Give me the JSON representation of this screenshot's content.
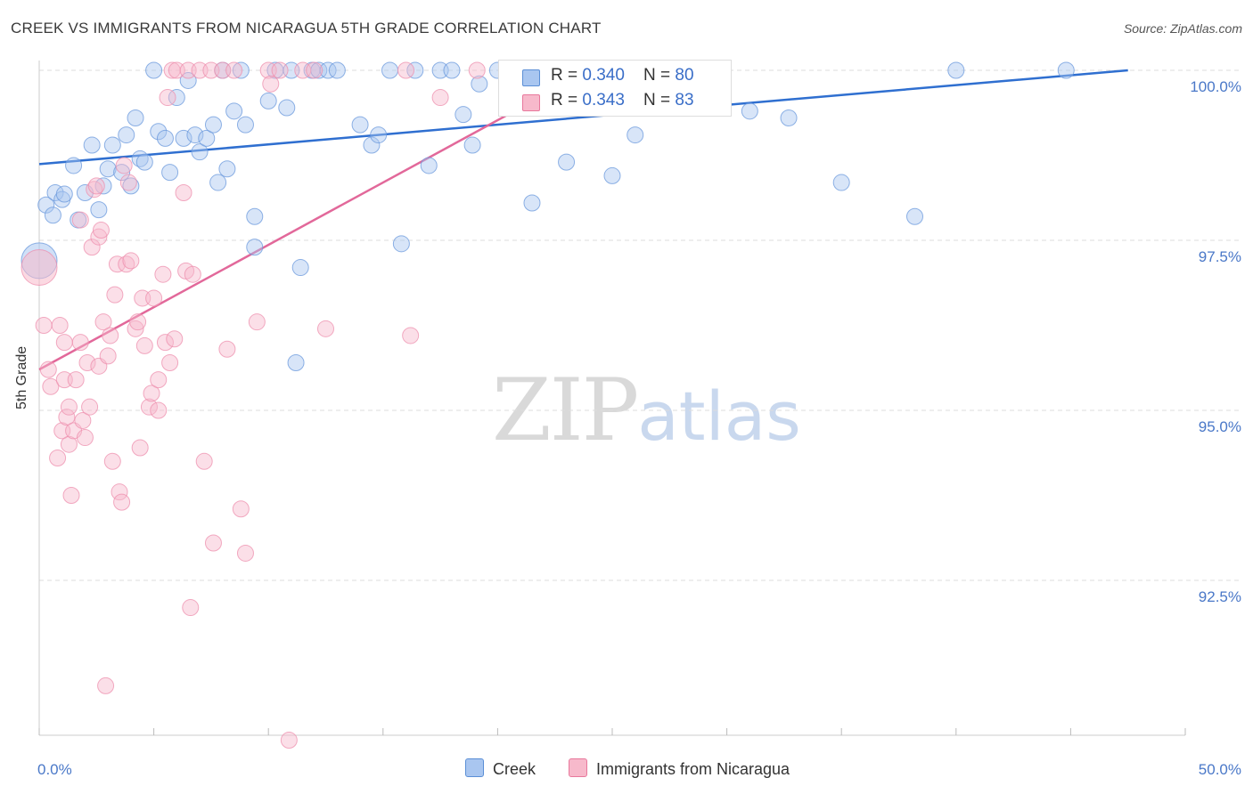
{
  "header": {
    "title": "CREEK VS IMMIGRANTS FROM NICARAGUA 5TH GRADE CORRELATION CHART",
    "source": "Source: ZipAtlas.com"
  },
  "legend": {
    "creek": {
      "r_label": "R = ",
      "r_value": "0.340",
      "n_label": "N = ",
      "n_value": "80",
      "name": "Creek",
      "color": "#a9c6f0",
      "stroke": "#5b8fd6"
    },
    "nicaragua": {
      "r_label": "R = ",
      "r_value": "0.343",
      "n_label": "N = ",
      "n_value": "83",
      "name": "Immigrants from Nicaragua",
      "color": "#f7b9cb",
      "stroke": "#e8789c"
    }
  },
  "watermark": {
    "zip": "ZIP",
    "atlas": "atlas"
  },
  "chart_data": {
    "type": "scatter",
    "title": "CREEK VS IMMIGRANTS FROM NICARAGUA 5TH GRADE CORRELATION CHART",
    "xlabel": "",
    "ylabel": "5th Grade",
    "xlim": [
      0,
      50
    ],
    "ylim": [
      90.2,
      100.4
    ],
    "x_ticks": [
      {
        "value": 0,
        "label": "0.0%"
      },
      {
        "value": 50,
        "label": "50.0%"
      }
    ],
    "y_ticks": [
      {
        "value": 100.0,
        "label": "100.0%"
      },
      {
        "value": 97.5,
        "label": "97.5%"
      },
      {
        "value": 95.0,
        "label": "95.0%"
      },
      {
        "value": 92.5,
        "label": "92.5%"
      }
    ],
    "grid": true,
    "legend_position": "top-center",
    "series": [
      {
        "name": "Creek",
        "color": "#a9c6f0",
        "trend": {
          "x": [
            0,
            47.5
          ],
          "y": [
            98.62,
            100.0
          ]
        },
        "points": [
          [
            0.0,
            97.2
          ],
          [
            0.3,
            98.02
          ],
          [
            0.6,
            97.87
          ],
          [
            0.7,
            98.2
          ],
          [
            1.0,
            98.1
          ],
          [
            1.1,
            98.18
          ],
          [
            1.5,
            98.6
          ],
          [
            1.7,
            97.8
          ],
          [
            2.0,
            98.2
          ],
          [
            2.3,
            98.9
          ],
          [
            2.6,
            97.95
          ],
          [
            2.8,
            98.3
          ],
          [
            3.0,
            98.55
          ],
          [
            3.2,
            98.9
          ],
          [
            3.6,
            98.5
          ],
          [
            3.8,
            99.05
          ],
          [
            4.0,
            98.3
          ],
          [
            4.2,
            99.3
          ],
          [
            4.4,
            98.7
          ],
          [
            4.6,
            98.65
          ],
          [
            5.0,
            100.0
          ],
          [
            5.2,
            99.1
          ],
          [
            5.5,
            99.0
          ],
          [
            5.7,
            98.5
          ],
          [
            6.0,
            99.6
          ],
          [
            6.3,
            99.0
          ],
          [
            6.5,
            99.85
          ],
          [
            6.8,
            99.05
          ],
          [
            7.0,
            98.8
          ],
          [
            7.3,
            99.0
          ],
          [
            7.6,
            99.2
          ],
          [
            7.8,
            98.35
          ],
          [
            8.0,
            100.0
          ],
          [
            8.2,
            98.55
          ],
          [
            8.5,
            99.4
          ],
          [
            8.8,
            100.0
          ],
          [
            9.0,
            99.2
          ],
          [
            9.4,
            97.85
          ],
          [
            9.4,
            97.4
          ],
          [
            10.0,
            99.55
          ],
          [
            10.3,
            100.0
          ],
          [
            10.8,
            99.45
          ],
          [
            11.0,
            100.0
          ],
          [
            11.2,
            95.7
          ],
          [
            11.4,
            97.1
          ],
          [
            11.9,
            100.0
          ],
          [
            12.2,
            100.0
          ],
          [
            12.6,
            100.0
          ],
          [
            13.0,
            100.0
          ],
          [
            14.0,
            99.2
          ],
          [
            14.5,
            98.9
          ],
          [
            14.8,
            99.05
          ],
          [
            15.3,
            100.0
          ],
          [
            15.8,
            97.45
          ],
          [
            16.4,
            100.0
          ],
          [
            17.0,
            98.6
          ],
          [
            17.5,
            100.0
          ],
          [
            18.0,
            100.0
          ],
          [
            18.5,
            99.35
          ],
          [
            18.9,
            98.9
          ],
          [
            19.2,
            99.8
          ],
          [
            20.0,
            100.0
          ],
          [
            21.0,
            100.0
          ],
          [
            21.5,
            98.05
          ],
          [
            21.8,
            100.0
          ],
          [
            22.5,
            100.0
          ],
          [
            23.0,
            98.65
          ],
          [
            24.0,
            100.0
          ],
          [
            25.0,
            98.45
          ],
          [
            25.5,
            100.0
          ],
          [
            26.0,
            99.05
          ],
          [
            26.8,
            100.0
          ],
          [
            28.0,
            100.0
          ],
          [
            29.6,
            100.0
          ],
          [
            31.0,
            99.4
          ],
          [
            32.7,
            99.3
          ],
          [
            35.0,
            98.35
          ],
          [
            38.2,
            97.85
          ],
          [
            40.0,
            100.0
          ],
          [
            44.8,
            100.0
          ]
        ]
      },
      {
        "name": "Immigrants from Nicaragua",
        "color": "#f7b9cb",
        "trend": {
          "x": [
            0,
            24.0
          ],
          "y": [
            95.6,
            100.0
          ]
        },
        "points": [
          [
            0.0,
            97.1
          ],
          [
            0.2,
            96.25
          ],
          [
            0.4,
            95.6
          ],
          [
            0.5,
            95.35
          ],
          [
            0.8,
            94.3
          ],
          [
            0.9,
            96.25
          ],
          [
            1.0,
            94.7
          ],
          [
            1.1,
            96.0
          ],
          [
            1.1,
            95.45
          ],
          [
            1.2,
            94.9
          ],
          [
            1.3,
            95.05
          ],
          [
            1.3,
            94.5
          ],
          [
            1.4,
            93.75
          ],
          [
            1.5,
            94.7
          ],
          [
            1.6,
            95.45
          ],
          [
            1.8,
            97.8
          ],
          [
            1.8,
            96.0
          ],
          [
            1.9,
            94.85
          ],
          [
            2.0,
            94.6
          ],
          [
            2.1,
            95.7
          ],
          [
            2.2,
            95.05
          ],
          [
            2.3,
            97.4
          ],
          [
            2.4,
            98.25
          ],
          [
            2.5,
            98.3
          ],
          [
            2.6,
            95.65
          ],
          [
            2.6,
            97.55
          ],
          [
            2.7,
            97.65
          ],
          [
            2.8,
            96.3
          ],
          [
            2.9,
            90.95
          ],
          [
            3.0,
            95.8
          ],
          [
            3.1,
            96.1
          ],
          [
            3.2,
            94.25
          ],
          [
            3.3,
            96.7
          ],
          [
            3.4,
            97.15
          ],
          [
            3.5,
            93.8
          ],
          [
            3.6,
            93.65
          ],
          [
            3.7,
            98.6
          ],
          [
            3.8,
            97.15
          ],
          [
            3.9,
            98.35
          ],
          [
            4.0,
            97.2
          ],
          [
            4.2,
            96.2
          ],
          [
            4.3,
            96.3
          ],
          [
            4.4,
            94.45
          ],
          [
            4.5,
            96.65
          ],
          [
            4.6,
            95.95
          ],
          [
            4.8,
            95.05
          ],
          [
            4.9,
            95.25
          ],
          [
            5.0,
            96.65
          ],
          [
            5.2,
            95.45
          ],
          [
            5.2,
            95.0
          ],
          [
            5.4,
            97.0
          ],
          [
            5.5,
            96.0
          ],
          [
            5.6,
            99.6
          ],
          [
            5.7,
            95.7
          ],
          [
            5.8,
            100.0
          ],
          [
            5.9,
            96.05
          ],
          [
            6.0,
            100.0
          ],
          [
            6.3,
            98.2
          ],
          [
            6.4,
            97.05
          ],
          [
            6.5,
            100.0
          ],
          [
            6.6,
            92.1
          ],
          [
            6.7,
            97.0
          ],
          [
            7.0,
            100.0
          ],
          [
            7.2,
            94.25
          ],
          [
            7.5,
            100.0
          ],
          [
            7.6,
            93.05
          ],
          [
            8.0,
            100.0
          ],
          [
            8.2,
            95.9
          ],
          [
            8.5,
            100.0
          ],
          [
            8.8,
            93.55
          ],
          [
            9.0,
            92.9
          ],
          [
            9.5,
            96.3
          ],
          [
            10.0,
            100.0
          ],
          [
            10.1,
            99.8
          ],
          [
            10.5,
            100.0
          ],
          [
            10.9,
            90.15
          ],
          [
            11.5,
            100.0
          ],
          [
            12.0,
            100.0
          ],
          [
            12.5,
            96.2
          ],
          [
            16.0,
            100.0
          ],
          [
            16.2,
            96.1
          ],
          [
            17.5,
            99.6
          ],
          [
            19.1,
            100.0
          ]
        ]
      }
    ]
  }
}
